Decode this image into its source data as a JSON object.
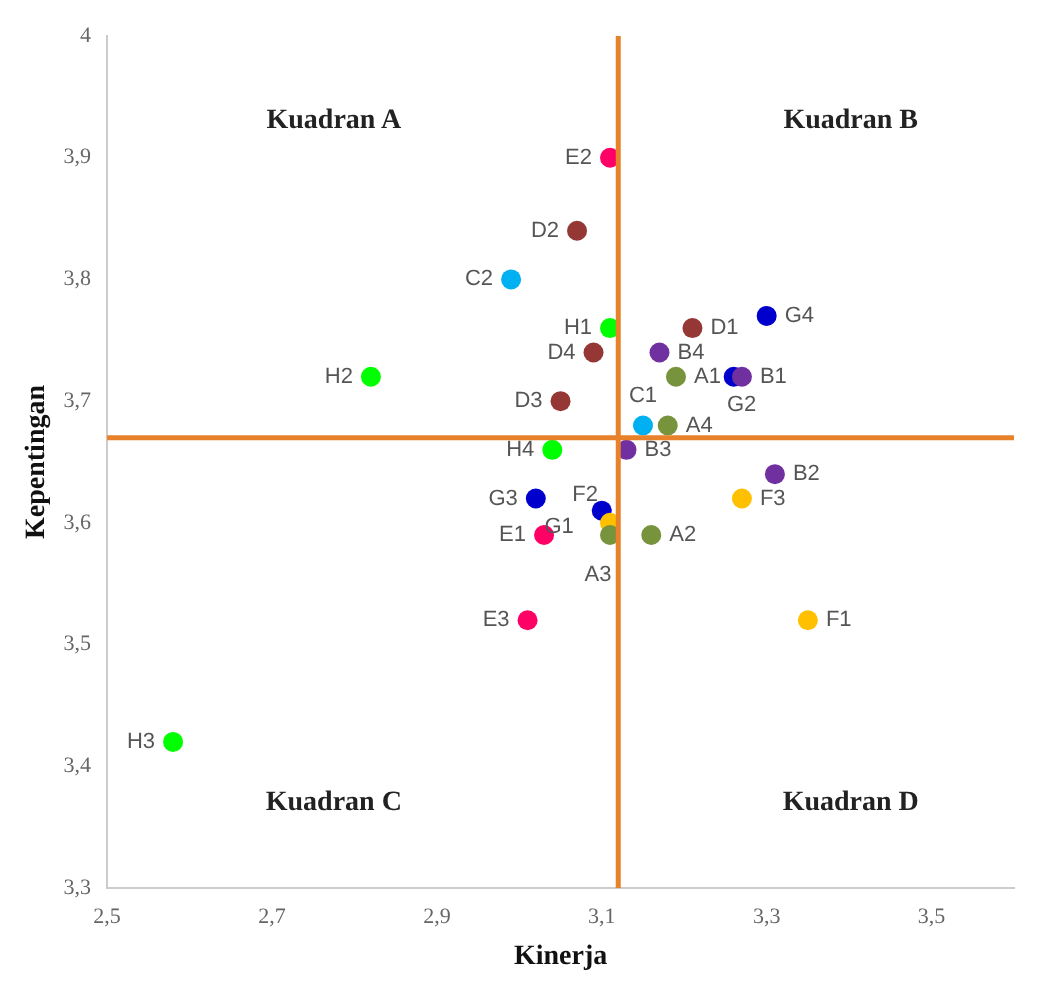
{
  "chart_data": {
    "type": "scatter",
    "xlabel": "Kinerja",
    "ylabel": "Kepentingan",
    "xlim": [
      2.5,
      3.6
    ],
    "ylim": [
      3.3,
      4
    ],
    "xticks": [
      {
        "value": 2.5,
        "label": "2,5"
      },
      {
        "value": 2.7,
        "label": "2,7"
      },
      {
        "value": 2.9,
        "label": "2,9"
      },
      {
        "value": 3.1,
        "label": "3,1"
      },
      {
        "value": 3.3,
        "label": "3,3"
      },
      {
        "value": 3.5,
        "label": "3,5"
      }
    ],
    "yticks": [
      {
        "value": 3.3,
        "label": "3,3"
      },
      {
        "value": 3.4,
        "label": "3,4"
      },
      {
        "value": 3.5,
        "label": "3,5"
      },
      {
        "value": 3.6,
        "label": "3,6"
      },
      {
        "value": 3.7,
        "label": "3,7"
      },
      {
        "value": 3.8,
        "label": "3,8"
      },
      {
        "value": 3.9,
        "label": "3,9"
      },
      {
        "value": 4,
        "label": "4"
      }
    ],
    "grid": false,
    "legend": false,
    "marker": "circle",
    "series": [
      {
        "color": "#77933c",
        "x": [
          3.19,
          3.16,
          3.11,
          3.18
        ],
        "values": [
          3.72,
          3.59,
          3.59,
          3.68
        ]
      },
      {
        "color": "#7030a0",
        "x": [
          3.27,
          3.31,
          3.13,
          3.17
        ],
        "values": [
          3.72,
          3.64,
          3.66,
          3.74
        ]
      },
      {
        "color": "#00b0f0",
        "x": [
          3.15,
          2.99
        ],
        "values": [
          3.68,
          3.8
        ]
      },
      {
        "color": "#953735",
        "x": [
          3.21,
          3.07,
          3.05,
          3.09
        ],
        "values": [
          3.76,
          3.84,
          3.7,
          3.74
        ]
      },
      {
        "color": "#ff0066",
        "x": [
          3.03,
          3.11,
          3.01
        ],
        "values": [
          3.59,
          3.9,
          3.52
        ]
      },
      {
        "color": "#ffc000",
        "x": [
          3.35,
          3.11,
          3.27
        ],
        "values": [
          3.52,
          3.6,
          3.62
        ]
      },
      {
        "color": "#0000cc",
        "x": [
          3.1,
          3.26,
          3.02,
          3.3
        ],
        "values": [
          3.61,
          3.72,
          3.62,
          3.77
        ]
      },
      {
        "color": "#00ff00",
        "x": [
          3.11,
          2.82,
          2.58,
          3.04
        ],
        "values": [
          3.76,
          3.72,
          3.42,
          3.66
        ]
      }
    ],
    "ref_lines": [
      {
        "axis": "x",
        "value": 3.12,
        "color": "#e8822a"
      },
      {
        "axis": "y",
        "value": 3.67,
        "color": "#e8822a"
      }
    ],
    "annotations": [
      "Kuadran A",
      "Kuadran B",
      "Kuadran C",
      "Kuadran D",
      {
        "text": "A1",
        "x": 3.19,
        "y": 3.72
      },
      {
        "text": "A2",
        "x": 3.16,
        "y": 3.59
      },
      {
        "text": "A3",
        "x": 3.11,
        "y": 3.59
      },
      {
        "text": "A4",
        "x": 3.18,
        "y": 3.68
      },
      {
        "text": "B1",
        "x": 3.27,
        "y": 3.72
      },
      {
        "text": "B2",
        "x": 3.31,
        "y": 3.64
      },
      {
        "text": "B3",
        "x": 3.13,
        "y": 3.66
      },
      {
        "text": "B4",
        "x": 3.17,
        "y": 3.74
      },
      {
        "text": "C1",
        "x": 3.15,
        "y": 3.68
      },
      {
        "text": "C2",
        "x": 2.99,
        "y": 3.8
      },
      {
        "text": "D1",
        "x": 3.21,
        "y": 3.76
      },
      {
        "text": "D2",
        "x": 3.07,
        "y": 3.84
      },
      {
        "text": "D3",
        "x": 3.05,
        "y": 3.7
      },
      {
        "text": "D4",
        "x": 3.09,
        "y": 3.74
      },
      {
        "text": "E1",
        "x": 3.03,
        "y": 3.59
      },
      {
        "text": "E2",
        "x": 3.11,
        "y": 3.9
      },
      {
        "text": "E3",
        "x": 3.01,
        "y": 3.52
      },
      {
        "text": "F1",
        "x": 3.35,
        "y": 3.52
      },
      {
        "text": "F2",
        "x": 3.11,
        "y": 3.6
      },
      {
        "text": "F3",
        "x": 3.27,
        "y": 3.62
      },
      {
        "text": "G1",
        "x": 3.1,
        "y": 3.61
      },
      {
        "text": "G2",
        "x": 3.26,
        "y": 3.72
      },
      {
        "text": "G3",
        "x": 3.02,
        "y": 3.62
      },
      {
        "text": "G4",
        "x": 3.3,
        "y": 3.77
      },
      {
        "text": "H1",
        "x": 3.11,
        "y": 3.76
      },
      {
        "text": "H2",
        "x": 2.82,
        "y": 3.72
      },
      {
        "text": "H3",
        "x": 2.58,
        "y": 3.42
      },
      {
        "text": "H4",
        "x": 3.04,
        "y": 3.66
      }
    ]
  }
}
